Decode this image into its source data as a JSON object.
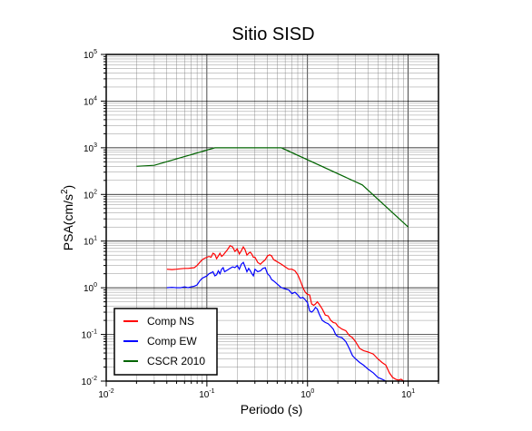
{
  "chart_data": {
    "type": "line",
    "title": "Sitio SISD",
    "xlabel": "Periodo (s)",
    "ylabel": "PSA(cm/s²)",
    "ylabel_parts": {
      "base": "PSA(cm/s",
      "sup": "2",
      "tail": ")"
    },
    "xscale": "log",
    "yscale": "log",
    "xlim": [
      0.01,
      20
    ],
    "ylim": [
      0.01,
      100000
    ],
    "grid": true,
    "legend_position": "bottom-left",
    "x_ticks": [
      {
        "base": "10",
        "exp": "-2"
      },
      {
        "base": "10",
        "exp": "-1"
      },
      {
        "base": "10",
        "exp": "0"
      },
      {
        "base": "10",
        "exp": "1"
      }
    ],
    "y_ticks": [
      {
        "base": "10",
        "exp": "-2"
      },
      {
        "base": "10",
        "exp": "-1"
      },
      {
        "base": "10",
        "exp": "0"
      },
      {
        "base": "10",
        "exp": "1"
      },
      {
        "base": "10",
        "exp": "2"
      },
      {
        "base": "10",
        "exp": "3"
      },
      {
        "base": "10",
        "exp": "4"
      },
      {
        "base": "10",
        "exp": "5"
      }
    ],
    "series": [
      {
        "name": "Comp NS",
        "color": "#ff0000",
        "x": [
          0.04,
          0.045,
          0.05,
          0.055,
          0.06,
          0.065,
          0.07,
          0.075,
          0.08,
          0.085,
          0.09,
          0.095,
          0.1,
          0.105,
          0.11,
          0.115,
          0.12,
          0.125,
          0.13,
          0.135,
          0.14,
          0.145,
          0.15,
          0.16,
          0.17,
          0.18,
          0.19,
          0.2,
          0.21,
          0.22,
          0.23,
          0.24,
          0.25,
          0.26,
          0.27,
          0.28,
          0.29,
          0.3,
          0.32,
          0.34,
          0.36,
          0.38,
          0.4,
          0.42,
          0.44,
          0.46,
          0.48,
          0.5,
          0.55,
          0.6,
          0.65,
          0.7,
          0.75,
          0.8,
          0.85,
          0.9,
          0.95,
          1.0,
          1.05,
          1.1,
          1.15,
          1.2,
          1.25,
          1.3,
          1.4,
          1.5,
          1.6,
          1.7,
          1.8,
          1.9,
          2.0,
          2.2,
          2.4,
          2.6,
          2.8,
          3.0,
          3.3,
          3.6,
          4.0,
          4.5,
          5.0,
          5.5,
          6.0,
          6.5,
          7.0,
          7.5,
          8.0,
          8.5,
          9.0
        ],
        "y": [
          2.5,
          2.45,
          2.5,
          2.55,
          2.6,
          2.6,
          2.65,
          2.7,
          3.0,
          3.5,
          4.0,
          4.3,
          4.5,
          4.7,
          4.5,
          5.5,
          5.2,
          4.2,
          4.8,
          5.5,
          4.7,
          5.0,
          5.5,
          6.5,
          8.0,
          7.5,
          6.0,
          6.8,
          5.3,
          6.2,
          7.5,
          6.5,
          5.0,
          5.5,
          5.8,
          5.2,
          4.5,
          4.5,
          3.5,
          3.2,
          3.6,
          4.0,
          4.8,
          5.1,
          4.8,
          4.0,
          3.8,
          3.6,
          3.2,
          2.8,
          2.5,
          2.5,
          2.3,
          1.9,
          1.4,
          1.0,
          0.8,
          0.72,
          0.7,
          0.45,
          0.42,
          0.45,
          0.5,
          0.45,
          0.35,
          0.26,
          0.25,
          0.2,
          0.18,
          0.175,
          0.15,
          0.13,
          0.12,
          0.095,
          0.085,
          0.07,
          0.05,
          0.045,
          0.042,
          0.038,
          0.03,
          0.025,
          0.022,
          0.015,
          0.012,
          0.011,
          0.0105,
          0.011,
          0.01
        ]
      },
      {
        "name": "Comp EW",
        "color": "#0000ff",
        "x": [
          0.04,
          0.045,
          0.05,
          0.055,
          0.06,
          0.065,
          0.07,
          0.075,
          0.08,
          0.085,
          0.09,
          0.095,
          0.1,
          0.105,
          0.11,
          0.115,
          0.12,
          0.125,
          0.13,
          0.135,
          0.14,
          0.145,
          0.15,
          0.16,
          0.17,
          0.18,
          0.19,
          0.2,
          0.21,
          0.22,
          0.23,
          0.24,
          0.25,
          0.26,
          0.27,
          0.28,
          0.29,
          0.3,
          0.32,
          0.34,
          0.36,
          0.38,
          0.4,
          0.42,
          0.44,
          0.46,
          0.48,
          0.5,
          0.55,
          0.6,
          0.65,
          0.7,
          0.75,
          0.8,
          0.85,
          0.9,
          0.95,
          1.0,
          1.05,
          1.1,
          1.15,
          1.2,
          1.25,
          1.3,
          1.4,
          1.5,
          1.6,
          1.7,
          1.8,
          1.9,
          2.0,
          2.2,
          2.4,
          2.6,
          2.8,
          3.0,
          3.3,
          3.6,
          4.0,
          4.5,
          5.0,
          5.5,
          6.0
        ],
        "y": [
          1.0,
          1.02,
          1.0,
          1.0,
          1.05,
          1.0,
          1.05,
          1.08,
          1.15,
          1.4,
          1.6,
          1.7,
          1.8,
          2.0,
          2.1,
          2.2,
          1.8,
          1.9,
          2.3,
          2.0,
          2.5,
          2.7,
          2.2,
          2.4,
          2.6,
          2.8,
          2.7,
          3.0,
          2.5,
          3.2,
          3.5,
          2.8,
          2.2,
          2.6,
          2.3,
          2.0,
          1.8,
          2.5,
          2.2,
          2.3,
          2.6,
          2.7,
          2.0,
          1.8,
          1.5,
          1.4,
          1.3,
          1.2,
          1.0,
          0.95,
          0.9,
          0.75,
          0.8,
          0.7,
          0.6,
          0.62,
          0.55,
          0.48,
          0.32,
          0.3,
          0.33,
          0.38,
          0.35,
          0.28,
          0.2,
          0.18,
          0.17,
          0.15,
          0.13,
          0.1,
          0.09,
          0.085,
          0.07,
          0.05,
          0.035,
          0.03,
          0.025,
          0.022,
          0.018,
          0.015,
          0.012,
          0.011,
          0.01
        ]
      },
      {
        "name": "CSCR 2010",
        "color": "#006400",
        "x": [
          0.02,
          0.03,
          0.12,
          0.55,
          3.5,
          10.0
        ],
        "y": [
          400,
          420,
          1000,
          1000,
          160,
          20
        ]
      }
    ]
  }
}
